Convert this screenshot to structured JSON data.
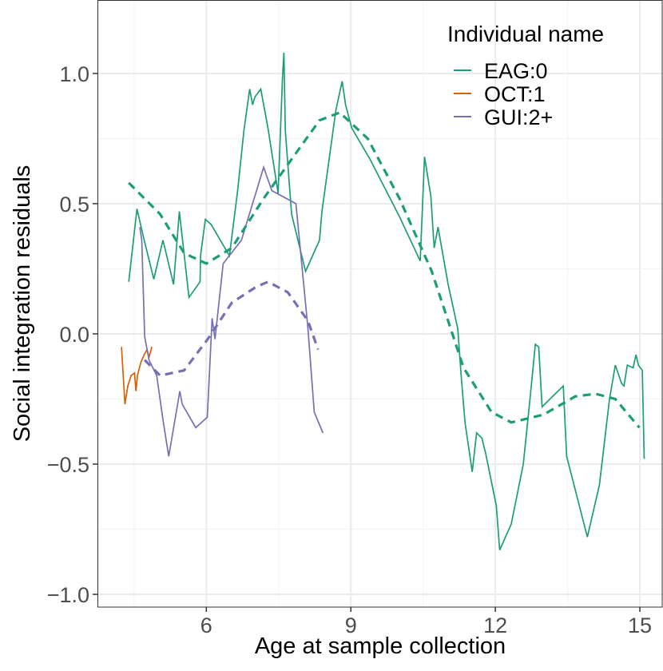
{
  "chart_data": {
    "type": "line",
    "xlabel": "Age at sample collection",
    "ylabel": "Social integration residuals",
    "legend_title": "Individual name",
    "legend": "top-right",
    "grid": true,
    "xlim": [
      3.74,
      15.48
    ],
    "ylim": [
      -1.049,
      1.282
    ],
    "xticks": [
      6,
      9,
      12,
      15
    ],
    "xminor": [
      4.5,
      7.5,
      10.5,
      13.5
    ],
    "yticks": [
      {
        "value": -1.0,
        "label": "−1.0"
      },
      {
        "value": -0.5,
        "label": "−0.5"
      },
      {
        "value": 0.0,
        "label": "0.0"
      },
      {
        "value": 0.5,
        "label": "0.5"
      },
      {
        "value": 1.0,
        "label": "1.0"
      }
    ],
    "yminor": [
      -0.75,
      -0.25,
      0.25,
      0.75
    ],
    "series": [
      {
        "name": "EAG:0",
        "color": "#1b9e77",
        "x": [
          4.39,
          4.56,
          4.71,
          4.91,
          5.1,
          5.32,
          5.44,
          5.64,
          5.87,
          5.88,
          5.98,
          6.1,
          6.48,
          6.65,
          6.78,
          6.9,
          6.96,
          7.01,
          7.13,
          7.28,
          7.49,
          7.58,
          7.61,
          7.64,
          7.77,
          8.06,
          8.35,
          8.4,
          8.69,
          8.82,
          8.89,
          9.02,
          9.4,
          10.01,
          10.44,
          10.53,
          10.66,
          10.73,
          10.81,
          11.02,
          11.22,
          11.29,
          11.37,
          11.52,
          11.61,
          11.72,
          11.8,
          12.02,
          12.09,
          12.33,
          12.45,
          12.58,
          12.73,
          12.83,
          12.9,
          12.97,
          13.41,
          13.48,
          13.91,
          14.16,
          14.37,
          14.49,
          14.62,
          14.67,
          14.74,
          14.86,
          14.92,
          14.97,
          15.05,
          15.09
        ],
        "values": [
          0.2,
          0.48,
          0.36,
          0.21,
          0.36,
          0.19,
          0.47,
          0.14,
          0.2,
          0.3,
          0.44,
          0.42,
          0.3,
          0.55,
          0.78,
          0.94,
          0.88,
          0.91,
          0.94,
          0.79,
          0.54,
          0.98,
          1.08,
          0.78,
          0.46,
          0.24,
          0.36,
          0.47,
          0.86,
          0.97,
          0.88,
          0.79,
          0.67,
          0.45,
          0.28,
          0.68,
          0.53,
          0.33,
          0.41,
          0.19,
          0.02,
          -0.16,
          -0.34,
          -0.53,
          -0.38,
          -0.4,
          -0.46,
          -0.66,
          -0.83,
          -0.73,
          -0.62,
          -0.5,
          -0.23,
          -0.04,
          -0.05,
          -0.28,
          -0.2,
          -0.47,
          -0.78,
          -0.58,
          -0.25,
          -0.12,
          -0.19,
          -0.2,
          -0.12,
          -0.13,
          -0.08,
          -0.12,
          -0.14,
          -0.48
        ],
        "smooth": {
          "x": [
            4.39,
            5.04,
            5.54,
            6.0,
            6.53,
            7.19,
            7.69,
            8.35,
            8.77,
            9.35,
            10.01,
            10.68,
            11.34,
            11.92,
            12.33,
            13.0,
            13.66,
            14.08,
            14.49,
            14.99
          ],
          "values": [
            0.58,
            0.46,
            0.31,
            0.27,
            0.33,
            0.52,
            0.65,
            0.82,
            0.85,
            0.75,
            0.52,
            0.24,
            -0.13,
            -0.3,
            -0.34,
            -0.31,
            -0.24,
            -0.23,
            -0.25,
            -0.36
          ]
        }
      },
      {
        "name": "OCT:1",
        "color": "#d95f02",
        "x": [
          4.24,
          4.31,
          4.37,
          4.44,
          4.51,
          4.54,
          4.57,
          4.64,
          4.71,
          4.77,
          4.81,
          4.87
        ],
        "values": [
          -0.05,
          -0.27,
          -0.2,
          -0.16,
          -0.15,
          -0.22,
          -0.16,
          -0.11,
          -0.08,
          -0.06,
          -0.09,
          -0.05
        ]
      },
      {
        "name": "GUI:2+",
        "color": "#7570b3",
        "x": [
          4.62,
          4.66,
          4.72,
          4.81,
          4.97,
          5.1,
          5.22,
          5.45,
          5.5,
          5.78,
          6.02,
          6.12,
          6.18,
          6.35,
          6.73,
          7.19,
          7.36,
          7.86,
          8.11,
          8.24,
          8.42
        ],
        "values": [
          0.41,
          0.36,
          -0.01,
          -0.1,
          -0.16,
          -0.33,
          -0.47,
          -0.22,
          -0.27,
          -0.36,
          -0.32,
          0.06,
          -0.02,
          0.27,
          0.36,
          0.64,
          0.55,
          0.5,
          0.02,
          -0.3,
          -0.38
        ],
        "smooth": {
          "x": [
            4.72,
            5.04,
            5.54,
            6.03,
            6.53,
            7.03,
            7.28,
            7.69,
            8.11,
            8.32
          ],
          "values": [
            -0.1,
            -0.16,
            -0.14,
            -0.02,
            0.12,
            0.18,
            0.2,
            0.16,
            0.05,
            -0.06
          ]
        }
      }
    ]
  }
}
